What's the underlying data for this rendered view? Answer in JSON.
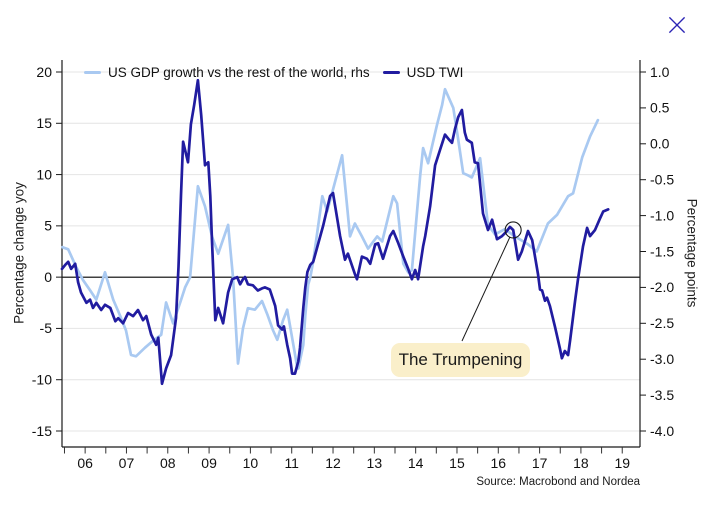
{
  "window": {
    "close_icon_color": "#2B25B5"
  },
  "chart": {
    "legend": [
      {
        "label": "US GDP growth vs the rest of the world, rhs",
        "color": "#A9C9F1"
      },
      {
        "label": "USD TWI",
        "color": "#211CA0"
      }
    ],
    "left_axis_title": "Percentage change yoy",
    "right_axis_title": "Percentage points",
    "source": "Source: Macrobond and Nordea",
    "annotation_label": "The Trumpening"
  },
  "chart_data": {
    "type": "line",
    "title": "",
    "x_axis": {
      "labels": [
        "06",
        "07",
        "08",
        "09",
        "10",
        "11",
        "12",
        "13",
        "14",
        "15",
        "16",
        "17",
        "18",
        "19"
      ],
      "range": [
        2005.94,
        2019.93
      ],
      "minor_tick_step": 0.5
    },
    "left_axis": {
      "label": "Percentage change yoy",
      "ticks": [
        20,
        15,
        10,
        5,
        0,
        -5,
        -10,
        -15
      ],
      "ylim": [
        -16.4,
        21.2
      ]
    },
    "right_axis": {
      "label": "Percentage points",
      "ticks": [
        1.0,
        0.5,
        0.0,
        -0.5,
        -1.0,
        -1.5,
        -2.0,
        -2.5,
        -3.0,
        -3.5,
        -4.0
      ],
      "ylim": [
        -4.2,
        1.17
      ]
    },
    "grid": "horizontal-on",
    "legend_position": "top-inside",
    "zero_line_axis": "left",
    "annotation": {
      "text": "The Trumpening",
      "target_series": "USD TWI",
      "target_x": 2016.86,
      "target_value": 4.6
    },
    "series": [
      {
        "name": "US GDP growth vs the rest of the world, rhs",
        "axis": "right",
        "color": "#A9C9F1",
        "x": [
          2005.95,
          2006.09,
          2006.28,
          2006.45,
          2006.62,
          2006.77,
          2006.98,
          2007.18,
          2007.35,
          2007.49,
          2007.61,
          2007.73,
          2007.95,
          2008.15,
          2008.34,
          2008.46,
          2008.63,
          2008.8,
          2008.92,
          2009.04,
          2009.23,
          2009.4,
          2009.57,
          2009.72,
          2009.96,
          2010.08,
          2010.2,
          2010.32,
          2010.44,
          2010.61,
          2010.78,
          2010.92,
          2011.05,
          2011.15,
          2011.29,
          2011.39,
          2011.46,
          2011.63,
          2011.66,
          2011.78,
          2011.83,
          2011.9,
          2011.95,
          2012.02,
          2012.24,
          2012.36,
          2012.72,
          2012.84,
          2012.91,
          2013.03,
          2013.2,
          2013.35,
          2013.57,
          2013.69,
          2013.96,
          2014.05,
          2014.2,
          2014.32,
          2014.41,
          2014.61,
          2014.68,
          2014.8,
          2015.02,
          2015.14,
          2015.21,
          2015.41,
          2015.53,
          2015.65,
          2015.77,
          2015.86,
          2016.06,
          2016.25,
          2016.42,
          2016.66,
          2016.9,
          2017.02,
          2017.22,
          2017.43,
          2017.7,
          2017.92,
          2018.19,
          2018.31,
          2018.53,
          2018.72,
          2018.91
        ],
        "values": [
          -1.44,
          -1.47,
          -1.71,
          -1.9,
          -2.04,
          -2.17,
          -1.79,
          -2.17,
          -2.4,
          -2.6,
          -2.94,
          -2.96,
          -2.84,
          -2.74,
          -2.66,
          -2.21,
          -2.5,
          -2.21,
          -2.0,
          -1.86,
          -0.59,
          -0.87,
          -1.29,
          -1.53,
          -1.13,
          -1.86,
          -3.06,
          -2.57,
          -2.29,
          -2.31,
          -2.19,
          -2.39,
          -2.6,
          -2.73,
          -2.46,
          -2.31,
          -2.54,
          -3.1,
          -3.13,
          -2.8,
          -2.39,
          -1.96,
          -1.86,
          -1.64,
          -0.73,
          -0.94,
          -0.16,
          -0.87,
          -1.29,
          -1.11,
          -1.29,
          -1.46,
          -1.29,
          -1.36,
          -0.73,
          -0.83,
          -1.67,
          -1.79,
          -1.76,
          -0.44,
          -0.06,
          -0.27,
          0.27,
          0.54,
          0.76,
          0.5,
          0.06,
          -0.41,
          -0.44,
          -0.47,
          -0.2,
          -1.13,
          -1.26,
          -1.19,
          -1.29,
          -1.33,
          -1.4,
          -1.5,
          -1.11,
          -0.99,
          -0.73,
          -0.69,
          -0.19,
          0.1,
          0.33
        ]
      },
      {
        "name": "USD TWI",
        "axis": "left",
        "color": "#211CA0",
        "x": [
          2005.94,
          2006.02,
          2006.09,
          2006.16,
          2006.26,
          2006.33,
          2006.4,
          2006.53,
          2006.62,
          2006.69,
          2006.77,
          2006.89,
          2006.98,
          2007.11,
          2007.23,
          2007.3,
          2007.42,
          2007.54,
          2007.66,
          2007.78,
          2007.9,
          2007.98,
          2008.1,
          2008.22,
          2008.27,
          2008.36,
          2008.46,
          2008.58,
          2008.7,
          2008.76,
          2008.82,
          2008.87,
          2008.99,
          2009.06,
          2009.14,
          2009.23,
          2009.31,
          2009.4,
          2009.48,
          2009.53,
          2009.57,
          2009.65,
          2009.72,
          2009.84,
          2009.96,
          2010.06,
          2010.18,
          2010.25,
          2010.32,
          2010.37,
          2010.44,
          2010.56,
          2010.68,
          2010.78,
          2010.85,
          2010.97,
          2011.1,
          2011.17,
          2011.27,
          2011.31,
          2011.39,
          2011.46,
          2011.51,
          2011.58,
          2011.66,
          2011.7,
          2011.78,
          2011.83,
          2011.88,
          2011.95,
          2012.02,
          2012.26,
          2012.43,
          2012.5,
          2012.67,
          2012.79,
          2012.86,
          2013.03,
          2013.08,
          2013.2,
          2013.32,
          2013.4,
          2013.52,
          2013.59,
          2013.71,
          2013.88,
          2013.96,
          2014.08,
          2014.2,
          2014.32,
          2014.41,
          2014.49,
          2014.56,
          2014.68,
          2014.73,
          2014.85,
          2014.97,
          2015.09,
          2015.21,
          2015.31,
          2015.38,
          2015.45,
          2015.53,
          2015.62,
          2015.69,
          2015.74,
          2015.86,
          2015.93,
          2016.01,
          2016.13,
          2016.25,
          2016.35,
          2016.47,
          2016.59,
          2016.69,
          2016.78,
          2016.86,
          2016.98,
          2017.07,
          2017.22,
          2017.32,
          2017.46,
          2017.51,
          2017.56,
          2017.63,
          2017.68,
          2017.75,
          2017.87,
          2017.99,
          2018.04,
          2018.11,
          2018.19,
          2018.24,
          2018.36,
          2018.43,
          2018.55,
          2018.65,
          2018.72,
          2018.84,
          2018.96,
          2019.04,
          2019.16
        ],
        "values": [
          0.8,
          1.2,
          1.5,
          0.8,
          1.3,
          -0.5,
          -1.5,
          -2.5,
          -2.2,
          -3.0,
          -2.5,
          -3.2,
          -2.7,
          -3.0,
          -4.3,
          -4.0,
          -4.5,
          -3.5,
          -3.8,
          -3.2,
          -4.2,
          -3.8,
          -5.6,
          -6.6,
          -5.9,
          -10.4,
          -8.9,
          -7.6,
          -4.0,
          1.0,
          8.0,
          13.2,
          11.2,
          14.9,
          16.8,
          19.2,
          15.8,
          10.9,
          11.2,
          7.9,
          3.5,
          -4.2,
          -3.0,
          -4.5,
          -1.5,
          -0.2,
          0.0,
          -0.7,
          -0.2,
          0.0,
          -0.7,
          -0.8,
          -1.3,
          -1.1,
          -1.0,
          -1.2,
          -2.8,
          -4.7,
          -5.1,
          -4.8,
          -6.6,
          -7.9,
          -9.4,
          -9.4,
          -8.2,
          -6.9,
          -3.0,
          -1.0,
          0.5,
          1.2,
          1.5,
          5.0,
          7.9,
          8.2,
          4.0,
          1.7,
          2.3,
          0.3,
          -0.2,
          2.0,
          1.8,
          1.3,
          3.2,
          3.3,
          1.8,
          4.0,
          4.5,
          3.3,
          2.0,
          0.8,
          -0.2,
          0.7,
          -0.2,
          3.0,
          4.0,
          6.9,
          10.9,
          12.4,
          13.9,
          13.4,
          13.1,
          14.4,
          15.6,
          16.3,
          14.1,
          13.4,
          13.1,
          11.2,
          11.1,
          6.2,
          4.6,
          5.6,
          3.7,
          4.0,
          4.4,
          4.9,
          4.6,
          1.7,
          2.5,
          4.5,
          3.6,
          0.3,
          -1.2,
          -1.3,
          -2.3,
          -2.0,
          -2.8,
          -4.8,
          -6.9,
          -7.9,
          -7.2,
          -7.6,
          -6.1,
          -2.3,
          -0.2,
          3.0,
          4.8,
          4.0,
          4.6,
          5.7,
          6.4,
          6.6
        ]
      }
    ]
  }
}
